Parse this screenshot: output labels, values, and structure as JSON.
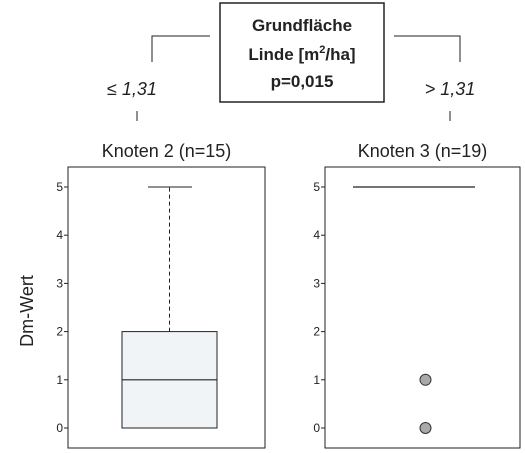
{
  "split_node": {
    "line1": "Grundfläche",
    "line2_prefix": "Linde [m",
    "line2_sup": "2",
    "line2_suffix": "/ha]",
    "line3": "p=0,015",
    "left_branch": "≤ 1,31",
    "right_branch": "> 1,31"
  },
  "chart_data": [
    {
      "type": "boxplot",
      "title": "Knoten 2 (n=15)",
      "ylabel": "Dm-Wert",
      "ylim": [
        0,
        5
      ],
      "yticks": [
        "0",
        "1",
        "2",
        "3",
        "4",
        "5"
      ],
      "box": {
        "min": 0,
        "q1": 0,
        "median": 1,
        "q3": 2,
        "max": 5
      },
      "outliers": []
    },
    {
      "type": "boxplot",
      "title": "Knoten 3 (n=19)",
      "ylim": [
        0,
        5
      ],
      "yticks": [
        "0",
        "1",
        "2",
        "3",
        "4",
        "5"
      ],
      "box": {
        "min": 5,
        "q1": 5,
        "median": 5,
        "q3": 5,
        "max": 5
      },
      "outliers": [
        1,
        0
      ]
    }
  ],
  "colors": {
    "box_fill": "#f1f4f7",
    "outlier_fill": "#a9a9a9",
    "line": "#222222"
  }
}
